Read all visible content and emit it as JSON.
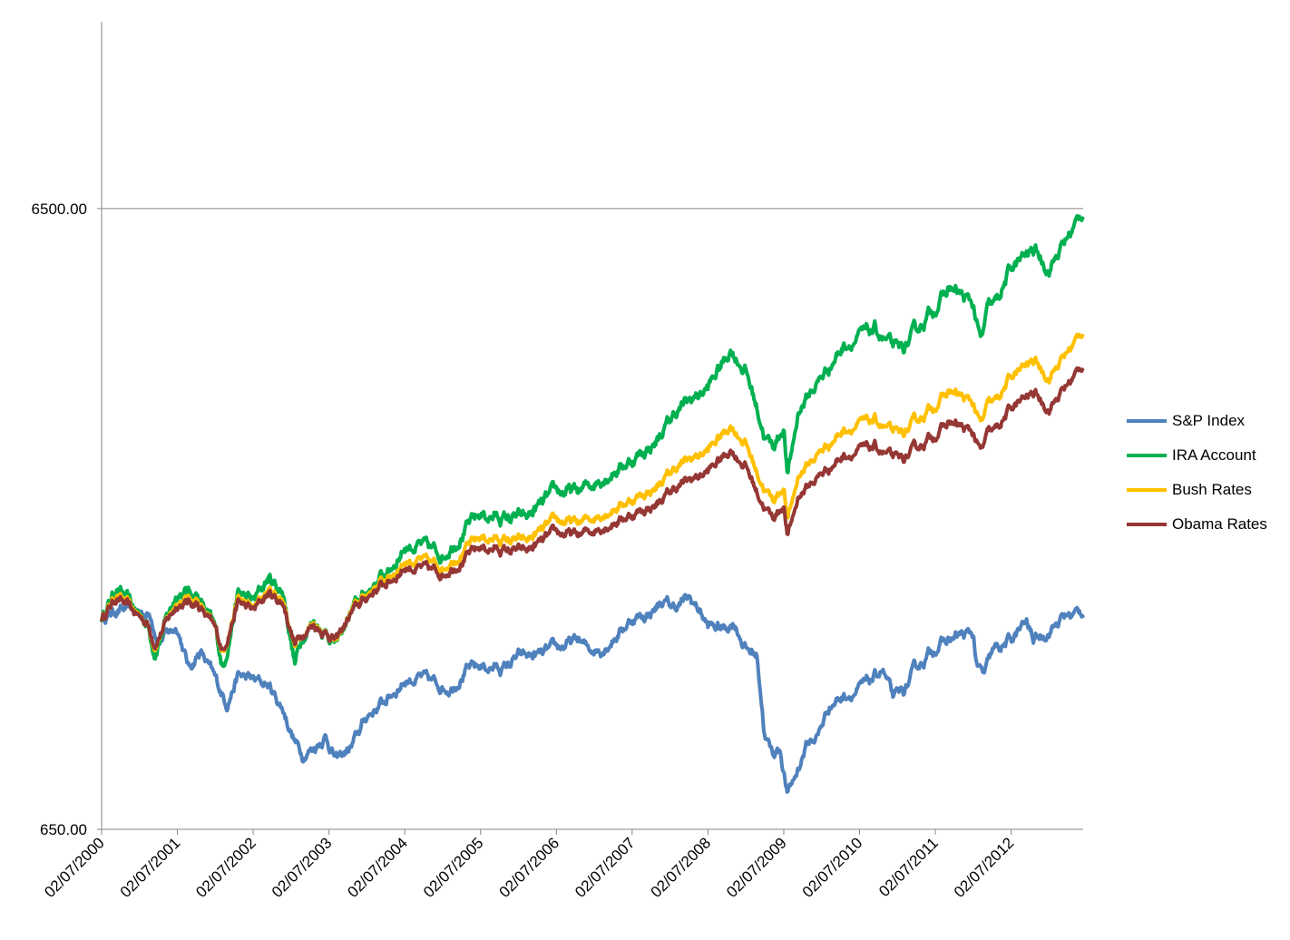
{
  "chart_data": {
    "type": "line",
    "title": "",
    "xlabel": "",
    "ylabel": "",
    "y_scale": "log",
    "ylim": [
      650,
      13000
    ],
    "y_ticks": [
      {
        "value": 650,
        "label": "650.00"
      },
      {
        "value": 6500,
        "label": "6500.00"
      }
    ],
    "x_ticks": [
      "02/07/2000",
      "02/07/2001",
      "02/07/2002",
      "02/07/2003",
      "02/07/2004",
      "02/07/2005",
      "02/07/2006",
      "02/07/2007",
      "02/07/2008",
      "02/07/2009",
      "02/07/2010",
      "02/07/2011",
      "02/07/2012"
    ],
    "x_range_years": [
      2000.0,
      2012.95
    ],
    "grid": {
      "horizontal_at": [
        6500
      ],
      "vertical": false
    },
    "legend_position": "right",
    "series": [
      {
        "name": "S&P Index",
        "color": "#4f81bd",
        "x": [
          2000.0,
          2000.2,
          2000.4,
          2000.65,
          2000.75,
          2001.0,
          2001.15,
          2001.3,
          2001.55,
          2001.65,
          2001.8,
          2002.0,
          2002.2,
          2002.4,
          2002.55,
          2002.65,
          2002.8,
          2002.95,
          2003.1,
          2003.3,
          2003.5,
          2003.75,
          2004.0,
          2004.2,
          2004.45,
          2004.6,
          2004.8,
          2005.0,
          2005.3,
          2005.5,
          2005.8,
          2006.0,
          2006.3,
          2006.4,
          2006.6,
          2006.8,
          2007.0,
          2007.2,
          2007.4,
          2007.55,
          2007.75,
          2007.9,
          2008.0,
          2008.2,
          2008.35,
          2008.5,
          2008.65,
          2008.75,
          2008.85,
          2008.95,
          2009.05,
          2009.15,
          2009.3,
          2009.45,
          2009.6,
          2009.8,
          2010.0,
          2010.2,
          2010.3,
          2010.45,
          2010.6,
          2010.75,
          2011.0,
          2011.3,
          2011.5,
          2011.55,
          2011.65,
          2011.75,
          2012.0,
          2012.2,
          2012.3,
          2012.5,
          2012.7,
          2012.95
        ],
        "values": [
          1420,
          1470,
          1460,
          1440,
          1310,
          1380,
          1180,
          1260,
          1100,
          1040,
          1150,
          1130,
          1110,
          1010,
          900,
          860,
          880,
          920,
          840,
          880,
          990,
          1050,
          1130,
          1140,
          1110,
          1100,
          1170,
          1190,
          1180,
          1230,
          1240,
          1270,
          1310,
          1270,
          1270,
          1340,
          1420,
          1440,
          1510,
          1480,
          1530,
          1460,
          1380,
          1370,
          1400,
          1270,
          1240,
          920,
          860,
          880,
          740,
          790,
          890,
          920,
          1030,
          1070,
          1090,
          1140,
          1180,
          1050,
          1090,
          1180,
          1280,
          1330,
          1340,
          1180,
          1150,
          1250,
          1310,
          1400,
          1310,
          1360,
          1430,
          1460
        ]
      },
      {
        "name": "IRA Account",
        "color": "#00b050",
        "x": [
          2000.0,
          2000.2,
          2000.4,
          2000.6,
          2000.7,
          2001.0,
          2001.25,
          2001.5,
          2001.6,
          2001.8,
          2002.0,
          2002.2,
          2002.4,
          2002.55,
          2002.65,
          2002.8,
          2003.0,
          2003.1,
          2003.3,
          2003.6,
          2003.8,
          2004.0,
          2004.2,
          2004.5,
          2004.8,
          2005.0,
          2005.3,
          2005.6,
          2006.0,
          2006.3,
          2006.6,
          2007.0,
          2007.3,
          2007.6,
          2008.0,
          2008.3,
          2008.5,
          2008.65,
          2008.75,
          2008.85,
          2009.0,
          2009.05,
          2009.2,
          2009.5,
          2009.8,
          2010.2,
          2010.5,
          2010.6,
          2010.9,
          2011.2,
          2011.5,
          2011.6,
          2011.7,
          2011.8,
          2012.0,
          2012.3,
          2012.5,
          2012.95
        ],
        "values": [
          1420,
          1600,
          1480,
          1400,
          1260,
          1570,
          1560,
          1360,
          1180,
          1560,
          1510,
          1650,
          1560,
          1200,
          1340,
          1410,
          1340,
          1290,
          1460,
          1620,
          1700,
          1860,
          1860,
          1800,
          1980,
          2090,
          2060,
          2060,
          2270,
          2270,
          2400,
          2560,
          2720,
          3080,
          3340,
          3860,
          3560,
          3100,
          2800,
          2680,
          2900,
          2400,
          3090,
          3480,
          3930,
          4140,
          3820,
          3880,
          4370,
          4840,
          4540,
          3930,
          4490,
          4560,
          5210,
          5580,
          5210,
          6420
        ]
      },
      {
        "name": "Bush Rates",
        "color": "#ffc000",
        "x": [
          2000.0,
          2000.2,
          2000.4,
          2000.6,
          2000.7,
          2001.0,
          2001.25,
          2001.5,
          2001.6,
          2001.8,
          2002.0,
          2002.2,
          2002.4,
          2002.55,
          2002.65,
          2002.8,
          2003.0,
          2003.1,
          2003.3,
          2003.6,
          2003.8,
          2004.0,
          2004.2,
          2004.5,
          2004.8,
          2005.0,
          2005.3,
          2005.6,
          2006.0,
          2006.3,
          2006.6,
          2007.0,
          2007.3,
          2007.6,
          2008.0,
          2008.3,
          2008.5,
          2008.65,
          2008.75,
          2008.85,
          2009.0,
          2009.05,
          2009.2,
          2009.5,
          2009.8,
          2010.2,
          2010.5,
          2010.6,
          2010.9,
          2011.2,
          2011.5,
          2011.6,
          2011.7,
          2011.8,
          2012.0,
          2012.3,
          2012.5,
          2012.95
        ],
        "values": [
          1420,
          1560,
          1470,
          1400,
          1290,
          1520,
          1530,
          1360,
          1250,
          1530,
          1470,
          1580,
          1520,
          1280,
          1350,
          1400,
          1340,
          1300,
          1460,
          1600,
          1660,
          1760,
          1760,
          1720,
          1840,
          1920,
          1900,
          1890,
          2040,
          2020,
          2100,
          2210,
          2300,
          2500,
          2650,
          2910,
          2720,
          2440,
          2300,
          2200,
          2320,
          2040,
          2430,
          2650,
          2870,
          2960,
          2800,
          2830,
          3070,
          3300,
          3150,
          2900,
          3140,
          3170,
          3480,
          3700,
          3480,
          4130
        ]
      },
      {
        "name": "Obama Rates",
        "color": "#953735",
        "x": [
          2000.0,
          2000.2,
          2000.4,
          2000.6,
          2000.7,
          2001.0,
          2001.25,
          2001.5,
          2001.6,
          2001.8,
          2002.0,
          2002.2,
          2002.4,
          2002.55,
          2002.65,
          2002.8,
          2003.0,
          2003.1,
          2003.3,
          2003.6,
          2003.8,
          2004.0,
          2004.2,
          2004.5,
          2004.8,
          2005.0,
          2005.3,
          2005.6,
          2006.0,
          2006.3,
          2006.6,
          2007.0,
          2007.3,
          2007.6,
          2008.0,
          2008.3,
          2008.5,
          2008.65,
          2008.75,
          2008.85,
          2009.0,
          2009.05,
          2009.2,
          2009.5,
          2009.8,
          2010.2,
          2010.5,
          2010.6,
          2010.9,
          2011.2,
          2011.5,
          2011.6,
          2011.7,
          2011.8,
          2012.0,
          2012.3,
          2012.5,
          2012.95
        ],
        "values": [
          1420,
          1540,
          1460,
          1400,
          1300,
          1500,
          1510,
          1360,
          1260,
          1510,
          1460,
          1560,
          1500,
          1290,
          1350,
          1390,
          1340,
          1310,
          1450,
          1580,
          1630,
          1720,
          1710,
          1680,
          1780,
          1850,
          1830,
          1820,
          1950,
          1930,
          2000,
          2090,
          2160,
          2320,
          2450,
          2660,
          2500,
          2270,
          2150,
          2060,
          2170,
          1920,
          2250,
          2430,
          2610,
          2680,
          2550,
          2570,
          2760,
          2940,
          2820,
          2620,
          2820,
          2850,
          3100,
          3280,
          3100,
          3640
        ]
      }
    ]
  }
}
